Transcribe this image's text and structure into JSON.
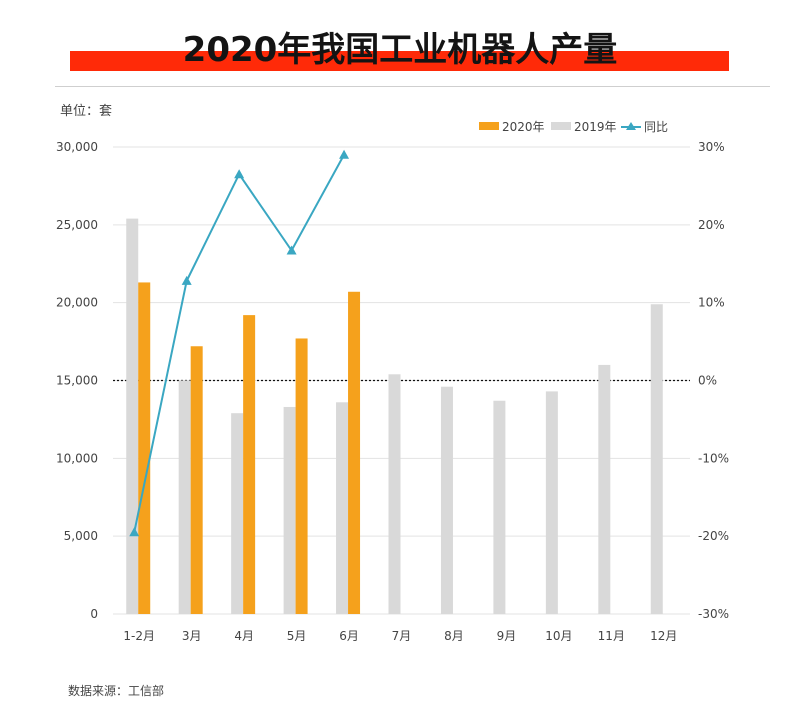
{
  "title": "2020年我国工业机器人产量",
  "unit_label": "单位：套",
  "source": "数据来源：工信部",
  "colors": {
    "series_2020": "#f5a11c",
    "series_2019": "#d9d9d9",
    "yoy_line": "#3aa7c2",
    "title_bar": "#ff2a08"
  },
  "chart_data": {
    "type": "bar",
    "categories": [
      "1-2月",
      "3月",
      "4月",
      "5月",
      "6月",
      "7月",
      "8月",
      "9月",
      "10月",
      "11月",
      "12月"
    ],
    "series": [
      {
        "name": "2020年",
        "type": "bar",
        "axis": "left",
        "values": [
          21300,
          17200,
          19200,
          17700,
          20700,
          null,
          null,
          null,
          null,
          null,
          null
        ]
      },
      {
        "name": "2019年",
        "type": "bar",
        "axis": "left",
        "values": [
          25400,
          15000,
          12900,
          13300,
          13600,
          15400,
          14600,
          13700,
          14300,
          16000,
          19900
        ]
      },
      {
        "name": "同比",
        "type": "line",
        "axis": "right",
        "values": [
          -19.5,
          12.8,
          26.5,
          16.7,
          29.0,
          null,
          null,
          null,
          null,
          null,
          null
        ]
      }
    ],
    "y_left": {
      "min": 0,
      "max": 30000,
      "ticks": [
        "0",
        "5,000",
        "10,000",
        "15,000",
        "20,000",
        "25,000",
        "30,000"
      ]
    },
    "y_right": {
      "min": -30,
      "max": 30,
      "ticks": [
        "-30%",
        "-20%",
        "-10%",
        "0%",
        "10%",
        "20%",
        "30%"
      ]
    },
    "legend": [
      "2020年",
      "2019年",
      "同比"
    ],
    "legend_position": "top-right",
    "grid": true
  }
}
